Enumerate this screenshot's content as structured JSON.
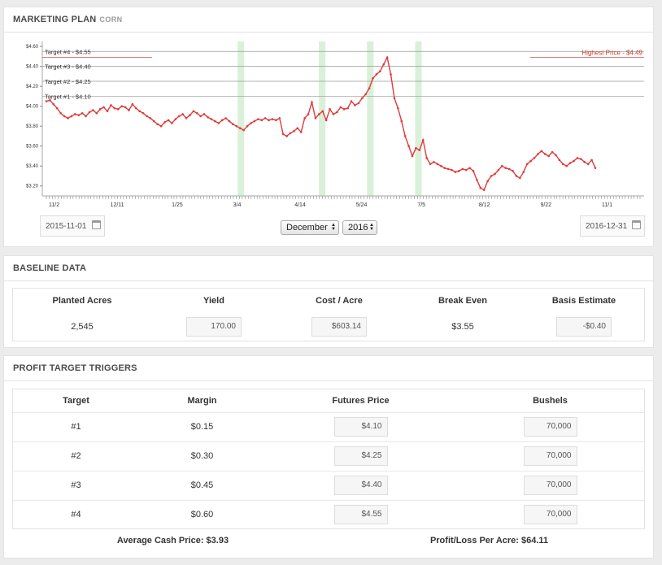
{
  "header": {
    "title": "MARKETING PLAN",
    "subtitle": "CORN"
  },
  "chart_data": {
    "type": "line",
    "ylim": [
      3.1,
      4.65
    ],
    "yticks": [
      "$4.60",
      "$4.40",
      "$4.20",
      "$4.00",
      "$3.80",
      "$3.60",
      "$3.40",
      "$3.20"
    ],
    "ytick_values": [
      4.6,
      4.4,
      4.2,
      4.0,
      3.8,
      3.6,
      3.4,
      3.2
    ],
    "xticks": [
      "11/2",
      "12/11",
      "1/25",
      "3/4",
      "4/14",
      "5/24",
      "7/5",
      "8/12",
      "9/22",
      "11/1"
    ],
    "targets": [
      {
        "label": "Target #4 - $4.55",
        "value": 4.55
      },
      {
        "label": "Target #3 - $4.40",
        "value": 4.4
      },
      {
        "label": "Target #2 - $4.25",
        "value": 4.25
      },
      {
        "label": "Target #1 - $4.10",
        "value": 4.1
      }
    ],
    "highest_label": "Highest Price - $4.49",
    "highest_value": 4.49,
    "line_color": "#e03a3a",
    "highlight_color": "#d9f0d9",
    "highlight_bands": [
      0.33,
      0.465,
      0.545,
      0.625
    ],
    "series": [
      {
        "values": [
          4.05,
          4.06,
          4.02,
          3.98,
          3.93,
          3.9,
          3.88,
          3.9,
          3.92,
          3.91,
          3.93,
          3.9,
          3.94,
          3.96,
          3.93,
          3.97,
          3.99,
          3.95,
          4.01,
          3.98,
          3.97,
          4.0,
          3.99,
          3.96,
          4.02,
          3.98,
          3.95,
          3.93,
          3.9,
          3.88,
          3.85,
          3.82,
          3.8,
          3.84,
          3.86,
          3.83,
          3.87,
          3.9,
          3.92,
          3.88,
          3.91,
          3.95,
          3.93,
          3.9,
          3.92,
          3.89,
          3.87,
          3.85,
          3.83,
          3.86,
          3.88,
          3.85,
          3.82,
          3.8,
          3.78,
          3.76,
          3.8,
          3.83,
          3.85,
          3.87,
          3.86,
          3.88,
          3.86,
          3.87,
          3.86,
          3.88,
          3.72,
          3.7,
          3.73,
          3.75,
          3.78,
          3.74,
          3.88,
          3.92,
          4.04,
          3.88,
          3.92,
          3.95,
          3.86,
          3.97,
          3.92,
          3.94,
          3.99,
          3.97,
          3.98,
          4.05,
          4.01,
          4.03,
          4.08,
          4.12,
          4.18,
          4.28,
          4.32,
          4.35,
          4.42,
          4.49,
          4.32,
          4.08,
          3.98,
          3.85,
          3.7,
          3.6,
          3.5,
          3.58,
          3.56,
          3.66,
          3.48,
          3.42,
          3.44,
          3.42,
          3.4,
          3.38,
          3.37,
          3.36,
          3.34,
          3.35,
          3.37,
          3.36,
          3.38,
          3.35,
          3.26,
          3.18,
          3.16,
          3.25,
          3.3,
          3.32,
          3.36,
          3.4,
          3.38,
          3.37,
          3.35,
          3.3,
          3.28,
          3.34,
          3.42,
          3.45,
          3.48,
          3.52,
          3.55,
          3.52,
          3.5,
          3.54,
          3.51,
          3.46,
          3.42,
          3.4,
          3.43,
          3.45,
          3.48,
          3.47,
          3.44,
          3.42,
          3.46,
          3.38
        ]
      }
    ]
  },
  "dates": {
    "start": "2015-11-01",
    "end": "2016-12-31",
    "month": "December",
    "year": "2016"
  },
  "baseline": {
    "title": "BASELINE DATA",
    "headers": [
      "Planted Acres",
      "Yield",
      "Cost / Acre",
      "Break Even",
      "Basis Estimate"
    ],
    "planted_acres": "2,545",
    "yield": "170.00",
    "cost_acre": "$603.14",
    "break_even": "$3.55",
    "basis": "-$0.40"
  },
  "triggers": {
    "title": "PROFIT TARGET TRIGGERS",
    "headers": [
      "Target",
      "Margin",
      "Futures Price",
      "Bushels"
    ],
    "rows": [
      {
        "target": "#1",
        "margin": "$0.15",
        "price": "$4.10",
        "bushels": "70,000"
      },
      {
        "target": "#2",
        "margin": "$0.30",
        "price": "$4.25",
        "bushels": "70,000"
      },
      {
        "target": "#3",
        "margin": "$0.45",
        "price": "$4.40",
        "bushels": "70,000"
      },
      {
        "target": "#4",
        "margin": "$0.60",
        "price": "$4.55",
        "bushels": "70,000"
      }
    ],
    "avg_cash": "Average Cash Price: $3.93",
    "profit_loss": "Profit/Loss Per Acre: $64.11"
  }
}
